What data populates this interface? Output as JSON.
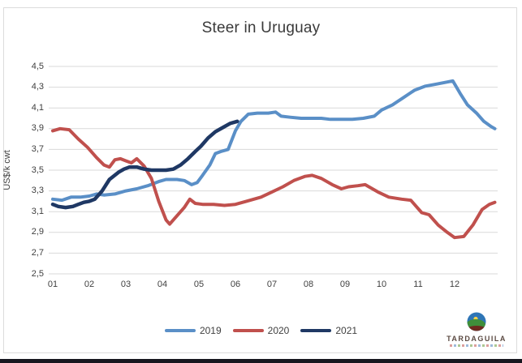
{
  "title": "Steer in Uruguay",
  "y_axis": {
    "label": "US$/k cwt",
    "tick_labels": [
      "4,5",
      "4,3",
      "4,1",
      "3,9",
      "3,7",
      "3,5",
      "3,3",
      "3,1",
      "2,9",
      "2,7",
      "2,5"
    ]
  },
  "x_axis": {
    "tick_labels": [
      "01",
      "02",
      "03",
      "04",
      "05",
      "06",
      "07",
      "08",
      "09",
      "10",
      "11",
      "12"
    ]
  },
  "logo": {
    "brand": "TARDAGUILA"
  },
  "colors": {
    "series_2019": "#5a8fc7",
    "series_2020": "#c0504d",
    "series_2021": "#1f3864",
    "gridline": "#d9d9d9",
    "text": "#404040"
  },
  "chart_data": {
    "type": "line",
    "title": "Steer in Uruguay",
    "xlabel": "",
    "ylabel": "US$/k cwt",
    "ylim": [
      2.5,
      4.5
    ],
    "ytick_step": 0.2,
    "xlim_months": [
      1,
      13.1
    ],
    "x_unit": "month of year (weekly price points)",
    "grid": "horizontal",
    "legend_position": "bottom",
    "categories": [
      "01",
      "02",
      "03",
      "04",
      "05",
      "06",
      "07",
      "08",
      "09",
      "10",
      "11",
      "12"
    ],
    "series": [
      {
        "name": "2019",
        "color": "#5a8fc7",
        "points": [
          [
            1.0,
            3.22
          ],
          [
            1.25,
            3.21
          ],
          [
            1.5,
            3.24
          ],
          [
            1.75,
            3.24
          ],
          [
            2.0,
            3.25
          ],
          [
            2.2,
            3.27
          ],
          [
            2.4,
            3.26
          ],
          [
            2.7,
            3.27
          ],
          [
            3.0,
            3.3
          ],
          [
            3.3,
            3.32
          ],
          [
            3.6,
            3.35
          ],
          [
            3.9,
            3.39
          ],
          [
            4.1,
            3.41
          ],
          [
            4.4,
            3.41
          ],
          [
            4.6,
            3.4
          ],
          [
            4.8,
            3.36
          ],
          [
            4.95,
            3.38
          ],
          [
            5.1,
            3.45
          ],
          [
            5.3,
            3.55
          ],
          [
            5.45,
            3.66
          ],
          [
            5.6,
            3.68
          ],
          [
            5.8,
            3.7
          ],
          [
            6.0,
            3.88
          ],
          [
            6.15,
            3.97
          ],
          [
            6.35,
            4.04
          ],
          [
            6.6,
            4.05
          ],
          [
            6.9,
            4.05
          ],
          [
            7.1,
            4.06
          ],
          [
            7.25,
            4.02
          ],
          [
            7.5,
            4.01
          ],
          [
            7.8,
            4.0
          ],
          [
            8.1,
            4.0
          ],
          [
            8.35,
            4.0
          ],
          [
            8.6,
            3.99
          ],
          [
            8.9,
            3.99
          ],
          [
            9.2,
            3.99
          ],
          [
            9.5,
            4.0
          ],
          [
            9.8,
            4.02
          ],
          [
            10.0,
            4.08
          ],
          [
            10.3,
            4.13
          ],
          [
            10.6,
            4.2
          ],
          [
            10.9,
            4.27
          ],
          [
            11.2,
            4.31
          ],
          [
            11.5,
            4.33
          ],
          [
            11.8,
            4.35
          ],
          [
            11.95,
            4.36
          ],
          [
            12.15,
            4.24
          ],
          [
            12.35,
            4.13
          ],
          [
            12.6,
            4.05
          ],
          [
            12.8,
            3.97
          ],
          [
            13.0,
            3.92
          ],
          [
            13.1,
            3.9
          ]
        ]
      },
      {
        "name": "2020",
        "color": "#c0504d",
        "points": [
          [
            1.0,
            3.88
          ],
          [
            1.2,
            3.9
          ],
          [
            1.45,
            3.89
          ],
          [
            1.7,
            3.8
          ],
          [
            1.95,
            3.72
          ],
          [
            2.2,
            3.62
          ],
          [
            2.4,
            3.55
          ],
          [
            2.55,
            3.53
          ],
          [
            2.7,
            3.6
          ],
          [
            2.85,
            3.61
          ],
          [
            3.0,
            3.59
          ],
          [
            3.15,
            3.57
          ],
          [
            3.3,
            3.61
          ],
          [
            3.5,
            3.54
          ],
          [
            3.7,
            3.42
          ],
          [
            3.9,
            3.2
          ],
          [
            4.1,
            3.02
          ],
          [
            4.2,
            2.98
          ],
          [
            4.4,
            3.06
          ],
          [
            4.6,
            3.14
          ],
          [
            4.75,
            3.22
          ],
          [
            4.9,
            3.18
          ],
          [
            5.1,
            3.17
          ],
          [
            5.4,
            3.17
          ],
          [
            5.7,
            3.16
          ],
          [
            6.0,
            3.17
          ],
          [
            6.3,
            3.2
          ],
          [
            6.7,
            3.24
          ],
          [
            7.0,
            3.29
          ],
          [
            7.3,
            3.34
          ],
          [
            7.6,
            3.4
          ],
          [
            7.9,
            3.44
          ],
          [
            8.1,
            3.45
          ],
          [
            8.35,
            3.42
          ],
          [
            8.65,
            3.36
          ],
          [
            8.9,
            3.32
          ],
          [
            9.1,
            3.34
          ],
          [
            9.35,
            3.35
          ],
          [
            9.55,
            3.36
          ],
          [
            9.9,
            3.29
          ],
          [
            10.2,
            3.24
          ],
          [
            10.55,
            3.22
          ],
          [
            10.8,
            3.21
          ],
          [
            11.1,
            3.09
          ],
          [
            11.3,
            3.07
          ],
          [
            11.55,
            2.97
          ],
          [
            11.8,
            2.9
          ],
          [
            12.0,
            2.85
          ],
          [
            12.25,
            2.86
          ],
          [
            12.5,
            2.97
          ],
          [
            12.75,
            3.12
          ],
          [
            12.95,
            3.17
          ],
          [
            13.1,
            3.19
          ]
        ]
      },
      {
        "name": "2021",
        "color": "#1f3864",
        "points": [
          [
            1.0,
            3.17
          ],
          [
            1.15,
            3.15
          ],
          [
            1.35,
            3.14
          ],
          [
            1.55,
            3.15
          ],
          [
            1.7,
            3.17
          ],
          [
            1.85,
            3.19
          ],
          [
            2.0,
            3.2
          ],
          [
            2.15,
            3.22
          ],
          [
            2.35,
            3.3
          ],
          [
            2.55,
            3.41
          ],
          [
            2.8,
            3.48
          ],
          [
            2.95,
            3.51
          ],
          [
            3.1,
            3.53
          ],
          [
            3.3,
            3.53
          ],
          [
            3.5,
            3.51
          ],
          [
            3.7,
            3.5
          ],
          [
            3.9,
            3.5
          ],
          [
            4.1,
            3.5
          ],
          [
            4.3,
            3.51
          ],
          [
            4.5,
            3.55
          ],
          [
            4.7,
            3.61
          ],
          [
            4.9,
            3.68
          ],
          [
            5.05,
            3.73
          ],
          [
            5.25,
            3.81
          ],
          [
            5.45,
            3.87
          ],
          [
            5.65,
            3.91
          ],
          [
            5.85,
            3.95
          ],
          [
            6.05,
            3.97
          ]
        ]
      }
    ]
  }
}
